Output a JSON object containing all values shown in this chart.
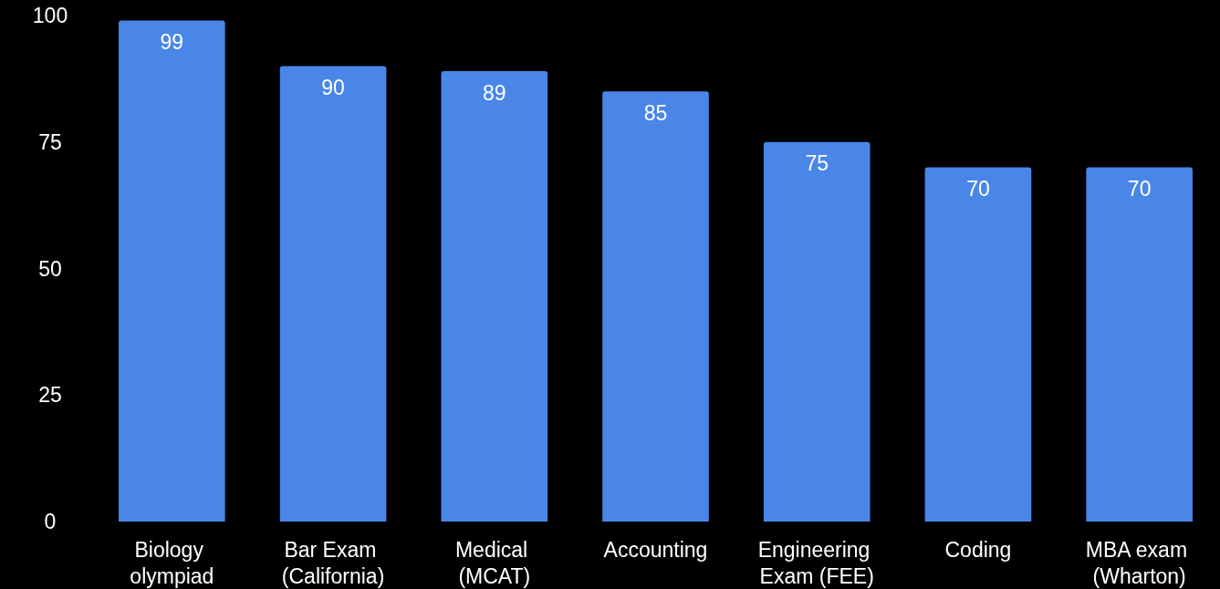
{
  "chart_data": {
    "type": "bar",
    "categories": [
      "Biology olympiad",
      "Bar Exam (California)",
      "Medical (MCAT)",
      "Accounting",
      "Engineering Exam (FEE)",
      "Coding",
      "MBA exam (Wharton)"
    ],
    "values": [
      99,
      90,
      89,
      85,
      75,
      70,
      70
    ],
    "color": "#4a86e8",
    "ylim": [
      0,
      100
    ],
    "yticks": [
      0,
      25,
      50,
      75,
      100
    ],
    "grid": false,
    "data_labels": true
  }
}
